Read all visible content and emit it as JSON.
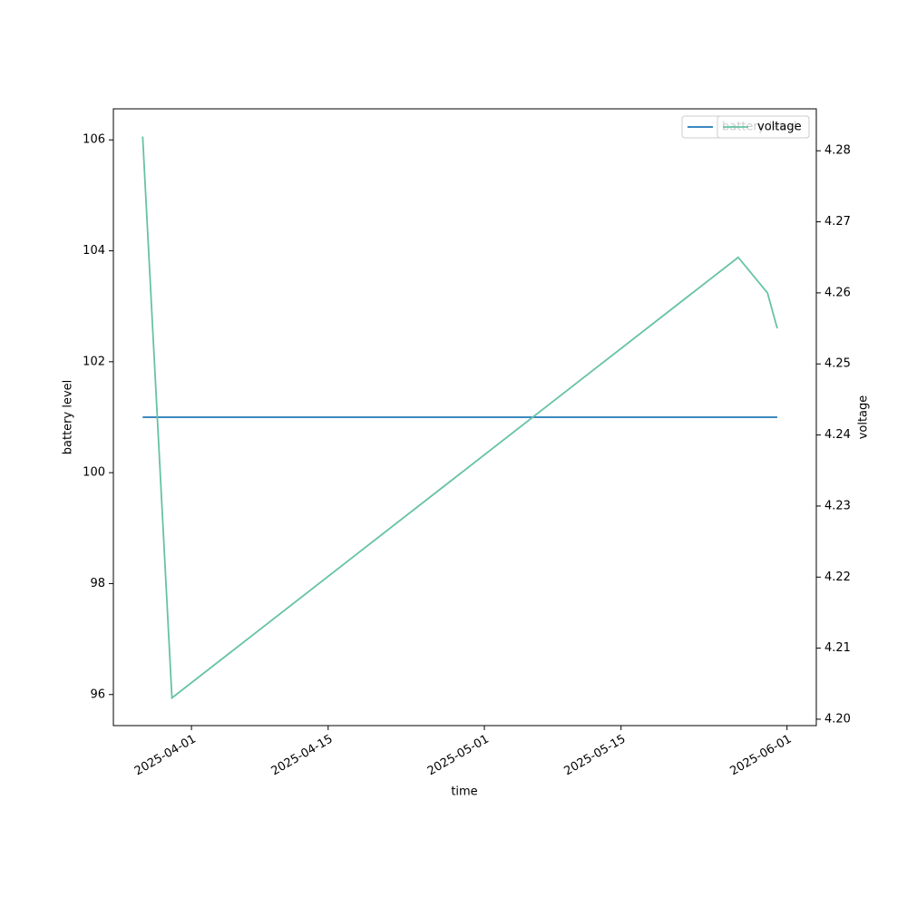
{
  "chart_data": {
    "type": "line",
    "x": [
      "2025-03-27",
      "2025-03-30",
      "2025-05-27",
      "2025-05-30",
      "2025-05-31"
    ],
    "xlim": [
      "2025-03-24",
      "2025-06-04"
    ],
    "xticks": [
      "2025-04-01",
      "2025-04-15",
      "2025-05-01",
      "2025-05-15",
      "2025-06-01"
    ],
    "xlabel": "time",
    "ylabel": "battery level",
    "y2label": "voltage",
    "ylim": [
      95.44,
      106.56
    ],
    "yticks": [
      96,
      98,
      100,
      102,
      104,
      106
    ],
    "y2lim": [
      4.1991,
      4.2859
    ],
    "y2ticks": [
      {
        "value": 4.2,
        "label": "4.20"
      },
      4.21,
      4.22,
      4.23,
      4.24,
      4.25,
      4.26,
      4.27,
      4.28
    ],
    "legend": "upper right",
    "series": [
      {
        "name": "battery level",
        "color": "#1f77b4",
        "values": [
          101,
          101,
          101,
          101,
          101
        ]
      },
      {
        "name": "voltage",
        "color": "#66c2a5",
        "axis": "y2",
        "values": [
          4.282,
          4.203,
          4.265,
          4.26,
          4.255
        ]
      }
    ]
  }
}
